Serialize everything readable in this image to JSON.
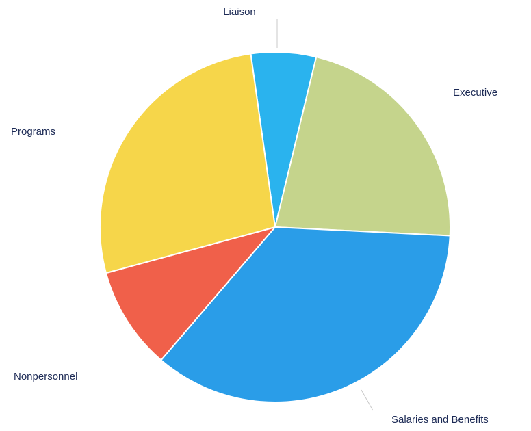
{
  "chart_data": {
    "type": "pie",
    "slices": [
      {
        "label": "Liaison",
        "value": 6.0,
        "color": "#2ab3ee"
      },
      {
        "label": "Executive",
        "value": 22.0,
        "color": "#c5d48c"
      },
      {
        "label": "Salaries and Benefits",
        "value": 35.5,
        "color": "#2a9de8"
      },
      {
        "label": "Nonpersonnel",
        "value": 9.5,
        "color": "#f0604a"
      },
      {
        "label": "Programs",
        "value": 27.0,
        "color": "#f6d64a"
      }
    ],
    "start_angle_deg": -8,
    "direction": "clockwise",
    "legend": "none",
    "labels_on_slices": false
  }
}
